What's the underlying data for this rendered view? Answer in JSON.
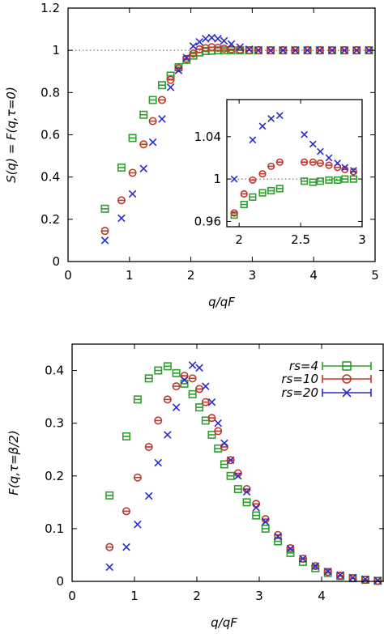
{
  "chart_data": [
    {
      "type": "scatter",
      "xlabel": "q/qF",
      "ylabel": "S(q) = F(q,τ=0)",
      "xlim": [
        0,
        5
      ],
      "ylim": [
        0,
        1.2
      ],
      "xticks": [
        "0",
        "1",
        "2",
        "3",
        "4",
        "5"
      ],
      "yticks": [
        "0",
        "0.2",
        "0.4",
        "0.6",
        "0.8",
        "1",
        "1.2"
      ],
      "reference_line": {
        "y": 1,
        "style": "dotted"
      },
      "series": [
        {
          "name": "rs=4",
          "color": "#2ca02c",
          "marker": "square",
          "x": [
            0.6,
            0.87,
            1.05,
            1.23,
            1.38,
            1.53,
            1.67,
            1.8,
            1.93,
            2.04,
            2.14,
            2.24,
            2.34,
            2.44,
            2.54,
            2.66,
            2.8,
            2.95,
            3.1,
            3.3,
            3.5,
            3.7,
            3.9,
            4.1,
            4.3,
            4.5,
            4.7,
            4.9
          ],
          "y": [
            0.25,
            0.445,
            0.585,
            0.695,
            0.765,
            0.835,
            0.88,
            0.92,
            0.955,
            0.975,
            0.99,
            0.997,
            0.998,
            1.0,
            1.0,
            1.0,
            1.0,
            1.0,
            1.0,
            1.0,
            1.0,
            1.0,
            1.0,
            1.0,
            1.0,
            1.0,
            1.0,
            1.0
          ]
        },
        {
          "name": "rs=10",
          "color": "#c0392b",
          "marker": "circle",
          "x": [
            0.6,
            0.87,
            1.05,
            1.23,
            1.38,
            1.53,
            1.67,
            1.8,
            1.93,
            2.04,
            2.14,
            2.24,
            2.34,
            2.44,
            2.54,
            2.66,
            2.8,
            2.95,
            3.1,
            3.3,
            3.5,
            3.7,
            3.9,
            4.1,
            4.3,
            4.5,
            4.7,
            4.9
          ],
          "y": [
            0.145,
            0.29,
            0.42,
            0.555,
            0.665,
            0.765,
            0.86,
            0.915,
            0.96,
            0.985,
            1.005,
            1.01,
            1.015,
            1.012,
            1.008,
            1.005,
            1.003,
            1.0,
            1.0,
            1.0,
            1.0,
            1.0,
            1.0,
            1.0,
            1.0,
            1.0,
            1.0,
            1.0
          ]
        },
        {
          "name": "rs=20",
          "color": "#2b2bcc",
          "marker": "x",
          "x": [
            0.6,
            0.87,
            1.05,
            1.23,
            1.38,
            1.53,
            1.67,
            1.8,
            1.93,
            2.04,
            2.14,
            2.24,
            2.34,
            2.44,
            2.54,
            2.66,
            2.8,
            2.95,
            3.1,
            3.3,
            3.5,
            3.7,
            3.9,
            4.1,
            4.3,
            4.5,
            4.7,
            4.9
          ],
          "y": [
            0.1,
            0.205,
            0.32,
            0.44,
            0.565,
            0.675,
            0.825,
            0.905,
            0.965,
            1.02,
            1.04,
            1.055,
            1.06,
            1.055,
            1.045,
            1.03,
            1.015,
            1.005,
            1.0,
            0.999,
            1.0,
            1.0,
            1.0,
            1.0,
            1.0,
            1.0,
            1.0,
            1.0
          ]
        }
      ],
      "inset": {
        "xlim": [
          1.9,
          3.0
        ],
        "ylim": [
          0.955,
          1.075
        ],
        "xticks": [
          "2",
          "2.5",
          "3"
        ],
        "yticks": [
          "0.96",
          "1",
          "1.04"
        ],
        "series": [
          {
            "name": "rs=4",
            "x": [
              1.96,
              2.04,
              2.11,
              2.19,
              2.26,
              2.33,
              2.53,
              2.6,
              2.66,
              2.73,
              2.8,
              2.86,
              2.93
            ],
            "y": [
              0.966,
              0.976,
              0.983,
              0.987,
              0.989,
              0.991,
              0.998,
              0.997,
              0.998,
              0.999,
              0.999,
              1.0,
              1.0
            ]
          },
          {
            "name": "rs=10",
            "x": [
              1.96,
              2.04,
              2.11,
              2.19,
              2.26,
              2.33,
              2.53,
              2.6,
              2.66,
              2.73,
              2.8,
              2.86,
              2.93
            ],
            "y": [
              0.968,
              0.986,
              0.999,
              1.005,
              1.012,
              1.016,
              1.016,
              1.016,
              1.015,
              1.013,
              1.011,
              1.009,
              1.007
            ]
          },
          {
            "name": "rs=20",
            "x": [
              1.96,
              2.11,
              2.19,
              2.26,
              2.33,
              2.53,
              2.6,
              2.66,
              2.73,
              2.8,
              2.86,
              2.93
            ],
            "y": [
              1.0,
              1.037,
              1.05,
              1.057,
              1.06,
              1.042,
              1.033,
              1.026,
              1.02,
              1.015,
              1.011,
              1.008
            ]
          }
        ]
      }
    },
    {
      "type": "scatter",
      "xlabel": "q/qF",
      "ylabel": "F(q,τ=β/2)",
      "xlim": [
        0,
        5
      ],
      "ylim": [
        0,
        0.45
      ],
      "xticks": [
        "0",
        "1",
        "2",
        "3",
        "4"
      ],
      "yticks": [
        "0",
        "0.1",
        "0.2",
        "0.3",
        "0.4"
      ],
      "legend": {
        "position": "top-right",
        "entries": [
          "rs=4",
          "rs=10",
          "rs=20"
        ]
      },
      "series": [
        {
          "name": "rs=4",
          "color": "#2ca02c",
          "marker": "square",
          "x": [
            0.6,
            0.87,
            1.05,
            1.23,
            1.38,
            1.53,
            1.67,
            1.8,
            1.93,
            2.04,
            2.14,
            2.24,
            2.34,
            2.44,
            2.54,
            2.66,
            2.8,
            2.95,
            3.1,
            3.3,
            3.5,
            3.7,
            3.9,
            4.1,
            4.3,
            4.5,
            4.7,
            4.9
          ],
          "y": [
            0.163,
            0.275,
            0.345,
            0.385,
            0.4,
            0.408,
            0.395,
            0.375,
            0.355,
            0.33,
            0.305,
            0.278,
            0.252,
            0.222,
            0.2,
            0.175,
            0.15,
            0.125,
            0.1,
            0.076,
            0.054,
            0.037,
            0.025,
            0.016,
            0.01,
            0.006,
            0.003,
            0.001
          ]
        },
        {
          "name": "rs=10",
          "color": "#c0392b",
          "marker": "circle",
          "x": [
            0.6,
            0.87,
            1.05,
            1.23,
            1.38,
            1.53,
            1.67,
            1.8,
            1.93,
            2.04,
            2.14,
            2.24,
            2.34,
            2.44,
            2.54,
            2.66,
            2.8,
            2.95,
            3.1,
            3.3,
            3.5,
            3.7,
            3.9,
            4.1,
            4.3,
            4.5,
            4.7,
            4.9
          ],
          "y": [
            0.065,
            0.133,
            0.197,
            0.255,
            0.305,
            0.345,
            0.37,
            0.39,
            0.385,
            0.365,
            0.34,
            0.31,
            0.285,
            0.255,
            0.23,
            0.205,
            0.175,
            0.147,
            0.118,
            0.088,
            0.063,
            0.043,
            0.029,
            0.018,
            0.011,
            0.006,
            0.003,
            0.001
          ]
        },
        {
          "name": "rs=20",
          "color": "#2b2bcc",
          "marker": "x",
          "x": [
            0.6,
            0.87,
            1.05,
            1.23,
            1.38,
            1.53,
            1.67,
            1.8,
            1.93,
            2.04,
            2.14,
            2.24,
            2.34,
            2.44,
            2.54,
            2.66,
            2.8,
            2.95,
            3.1,
            3.3,
            3.5,
            3.7,
            3.9,
            4.1,
            4.3,
            4.5,
            4.7,
            4.9
          ],
          "y": [
            0.027,
            0.065,
            0.108,
            0.162,
            0.225,
            0.278,
            0.33,
            0.382,
            0.41,
            0.405,
            0.37,
            0.34,
            0.3,
            0.262,
            0.23,
            0.2,
            0.17,
            0.14,
            0.113,
            0.085,
            0.062,
            0.043,
            0.029,
            0.019,
            0.012,
            0.007,
            0.004,
            0.002
          ]
        }
      ]
    }
  ]
}
